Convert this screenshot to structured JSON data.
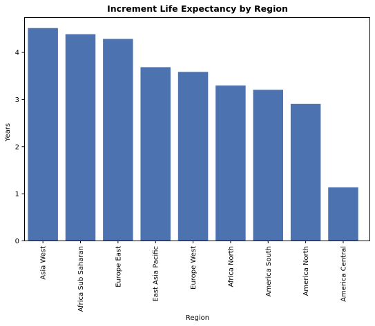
{
  "chart_data": {
    "type": "bar",
    "title": "Increment Life Expectancy by Region",
    "xlabel": "Region",
    "ylabel": "Years",
    "categories": [
      "Asia West",
      "Africa Sub Saharan",
      "Europe East",
      "East Asia Pacific",
      "Europe West",
      "Africa North",
      "America South",
      "America North",
      "America Central"
    ],
    "values": [
      4.51,
      4.38,
      4.28,
      3.68,
      3.58,
      3.29,
      3.2,
      2.9,
      1.13
    ],
    "yticks": [
      0,
      1,
      2,
      3,
      4
    ],
    "ylim": [
      0,
      4.74
    ],
    "grid": false,
    "bar_color": "#4c72b0"
  }
}
